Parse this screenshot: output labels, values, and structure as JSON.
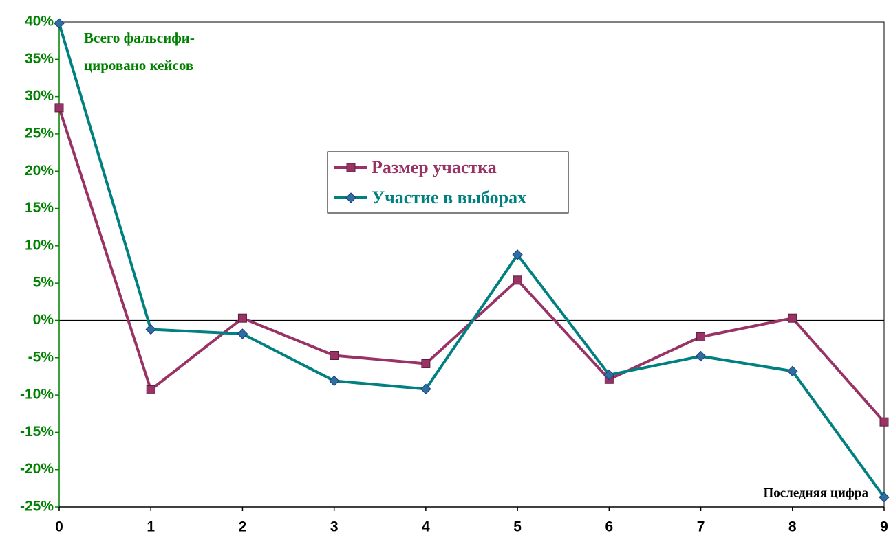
{
  "chart_data": {
    "type": "line",
    "annotation_lines": [
      "Всего фальсифи-",
      "цировано кейсов"
    ],
    "xlabel": "Последняя цифра",
    "x": [
      0,
      1,
      2,
      3,
      4,
      5,
      6,
      7,
      8,
      9
    ],
    "xlim": [
      0,
      9
    ],
    "xticks": [
      0,
      1,
      2,
      3,
      4,
      5,
      6,
      7,
      8,
      9
    ],
    "ylim": [
      -25,
      40
    ],
    "yticks": [
      {
        "value": -25,
        "label": "-25%"
      },
      {
        "value": -20,
        "label": "-20%"
      },
      {
        "value": -15,
        "label": "-15%"
      },
      {
        "value": -10,
        "label": "-10%"
      },
      {
        "value": -5,
        "label": "-5%"
      },
      {
        "value": 0,
        "label": "0%"
      },
      {
        "value": 5,
        "label": "5%"
      },
      {
        "value": 10,
        "label": "10%"
      },
      {
        "value": 15,
        "label": "15%"
      },
      {
        "value": 20,
        "label": "20%"
      },
      {
        "value": 25,
        "label": "25%"
      },
      {
        "value": 30,
        "label": "30%"
      },
      {
        "value": 35,
        "label": "35%"
      },
      {
        "value": 40,
        "label": "40%"
      }
    ],
    "series": [
      {
        "name": "Размер участка",
        "color": "#993366",
        "marker": "square",
        "values": [
          28.5,
          -9.3,
          0.3,
          -4.7,
          -5.8,
          5.4,
          -7.9,
          -2.2,
          0.3,
          -13.6
        ]
      },
      {
        "name": "Участие в выборах",
        "color": "#008080",
        "marker": "diamond",
        "values": [
          39.8,
          -1.2,
          -1.8,
          -8.1,
          -9.2,
          8.8,
          -7.3,
          -4.8,
          -6.8,
          -23.7
        ]
      }
    ]
  }
}
